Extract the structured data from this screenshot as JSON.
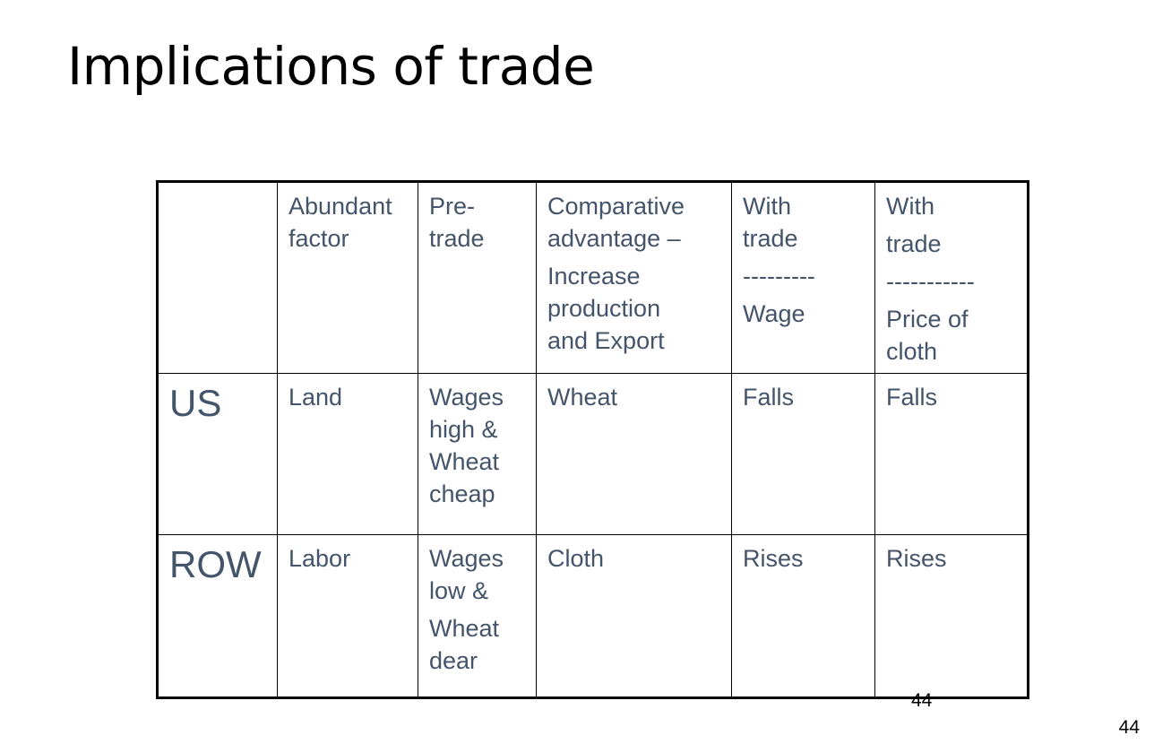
{
  "title": "Implications of trade",
  "table": {
    "header": {
      "corner": "",
      "abundant_factor": [
        "Abundant",
        "factor"
      ],
      "pre_trade": [
        "Pre-",
        "trade"
      ],
      "comparative_advantage": [
        "Comparative",
        "advantage –",
        "Increase",
        "production",
        "and Export"
      ],
      "with_trade_wage": [
        "With",
        "trade",
        "---------",
        "Wage"
      ],
      "with_trade_price": [
        "With",
        "trade",
        "-----------",
        "Price of",
        "cloth"
      ]
    },
    "rows": [
      {
        "country": "US",
        "abundant_factor": [
          "Land"
        ],
        "pre_trade": [
          "Wages",
          "high &",
          "Wheat",
          "cheap"
        ],
        "comparative_advantage": [
          "Wheat"
        ],
        "wage": [
          "Falls"
        ],
        "price_of_cloth": [
          "Falls"
        ]
      },
      {
        "country": "ROW",
        "abundant_factor": [
          "Labor"
        ],
        "pre_trade": [
          "Wages",
          "low &",
          "Wheat",
          "dear"
        ],
        "comparative_advantage": [
          "Cloth"
        ],
        "wage": [
          "Rises"
        ],
        "price_of_cloth": [
          "Rises"
        ]
      }
    ]
  },
  "inner_page_number": "44",
  "slide_number": "44",
  "colors": {
    "table_text": "#44546a",
    "title_text": "#000000",
    "border": "#000000",
    "background": "#ffffff"
  }
}
